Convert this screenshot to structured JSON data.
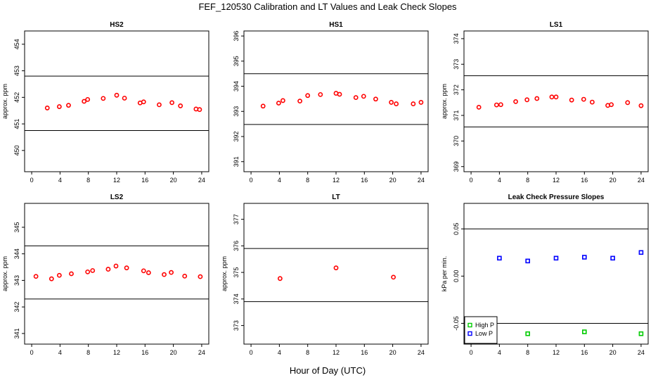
{
  "title": "FEF_120530  Calibration and LT Values and Leak Check Slopes",
  "xlabel": "Hour of Day (UTC)",
  "colors": {
    "calibration": "#ff0000",
    "high_p": "#00cc00",
    "low_p": "#0000ff",
    "frame": "#000000"
  },
  "chart_data": [
    {
      "type": "scatter",
      "title": "HS2",
      "ylabel": "approx. ppm",
      "xlim": [
        -1,
        25
      ],
      "ylim": [
        449.2,
        454.5
      ],
      "xticks": [
        0,
        4,
        8,
        12,
        16,
        20,
        24
      ],
      "yticks": [
        450,
        451,
        452,
        453,
        454
      ],
      "hlines": [
        450.75,
        452.8
      ],
      "x": [
        2.2,
        3.9,
        5.2,
        7.4,
        7.9,
        10.1,
        12.0,
        13.1,
        15.3,
        15.8,
        18.0,
        19.8,
        21.0,
        23.2,
        23.7
      ],
      "y": [
        451.6,
        451.65,
        451.7,
        451.85,
        451.92,
        451.96,
        452.08,
        451.97,
        451.79,
        451.83,
        451.72,
        451.8,
        451.68,
        451.56,
        451.54
      ]
    },
    {
      "type": "scatter",
      "title": "HS1",
      "ylabel": "",
      "xlim": [
        -1,
        25
      ],
      "ylim": [
        390.6,
        396.2
      ],
      "xticks": [
        0,
        4,
        8,
        12,
        16,
        20,
        24
      ],
      "yticks": [
        391,
        392,
        393,
        394,
        395,
        396
      ],
      "hlines": [
        392.48,
        394.5
      ],
      "x": [
        1.7,
        3.9,
        4.5,
        6.9,
        8.0,
        9.8,
        12.0,
        12.5,
        14.8,
        15.9,
        17.6,
        19.8,
        20.5,
        22.9,
        24.0
      ],
      "y": [
        393.21,
        393.33,
        393.43,
        393.41,
        393.63,
        393.67,
        393.72,
        393.68,
        393.55,
        393.6,
        393.49,
        393.36,
        393.3,
        393.3,
        393.36
      ]
    },
    {
      "type": "scatter",
      "title": "LS1",
      "ylabel": "approx. ppm",
      "xlim": [
        -1,
        25
      ],
      "ylim": [
        368.8,
        374.3
      ],
      "xticks": [
        0,
        4,
        8,
        12,
        16,
        20,
        24
      ],
      "yticks": [
        369,
        370,
        371,
        372,
        373,
        374
      ],
      "hlines": [
        370.55,
        372.55
      ],
      "x": [
        1.1,
        3.6,
        4.2,
        6.3,
        7.9,
        9.3,
        11.4,
        12.0,
        14.2,
        15.9,
        17.1,
        19.3,
        19.8,
        22.1,
        24.0
      ],
      "y": [
        371.32,
        371.41,
        371.42,
        371.54,
        371.61,
        371.66,
        371.72,
        371.72,
        371.6,
        371.63,
        371.52,
        371.39,
        371.42,
        371.5,
        371.38
      ]
    },
    {
      "type": "scatter",
      "title": "LS2",
      "ylabel": "approx. ppm",
      "xlim": [
        -1,
        25
      ],
      "ylim": [
        340.6,
        345.9
      ],
      "xticks": [
        0,
        4,
        8,
        12,
        16,
        20,
        24
      ],
      "yticks": [
        341,
        342,
        343,
        344,
        345
      ],
      "hlines": [
        342.3,
        344.3
      ],
      "x": [
        0.6,
        2.8,
        3.9,
        5.6,
        7.9,
        8.6,
        10.8,
        11.9,
        13.4,
        15.8,
        16.5,
        18.7,
        19.7,
        21.6,
        23.8
      ],
      "y": [
        343.15,
        343.06,
        343.19,
        343.25,
        343.32,
        343.37,
        343.42,
        343.54,
        343.47,
        343.36,
        343.29,
        343.22,
        343.3,
        343.16,
        343.14
      ]
    },
    {
      "type": "scatter",
      "title": "LT",
      "ylabel": "approx. ppm",
      "xlim": [
        -1,
        25
      ],
      "ylim": [
        372.3,
        377.6
      ],
      "xticks": [
        0,
        4,
        8,
        12,
        16,
        20,
        24
      ],
      "yticks": [
        373,
        374,
        375,
        376,
        377
      ],
      "hlines": [
        373.9,
        375.9
      ],
      "x": [
        4.1,
        12.0,
        20.1
      ],
      "y": [
        374.77,
        375.17,
        374.82
      ]
    },
    {
      "type": "scatter",
      "title": "Leak Check Pressure Slopes",
      "ylabel": "kPa per min.",
      "xlim": [
        -1,
        25
      ],
      "ylim": [
        -0.072,
        0.077
      ],
      "xticks": [
        0,
        4,
        8,
        12,
        16,
        20,
        24
      ],
      "yticks": [
        -0.05,
        0.0,
        0.05
      ],
      "ytick_labels": [
        "-0.05",
        "0.00",
        "0.05"
      ],
      "hlines": [
        -0.05,
        0.05
      ],
      "legend": {
        "position": "bottom-left",
        "entries": [
          "High P",
          "Low P"
        ]
      },
      "series": [
        {
          "name": "High P",
          "x": [
            8,
            16,
            24
          ],
          "y": [
            -0.061,
            -0.059,
            -0.061
          ]
        },
        {
          "name": "Low P",
          "x": [
            4,
            8,
            12,
            16,
            20,
            24
          ],
          "y": [
            0.019,
            0.016,
            0.019,
            0.02,
            0.019,
            0.025
          ]
        }
      ]
    }
  ]
}
